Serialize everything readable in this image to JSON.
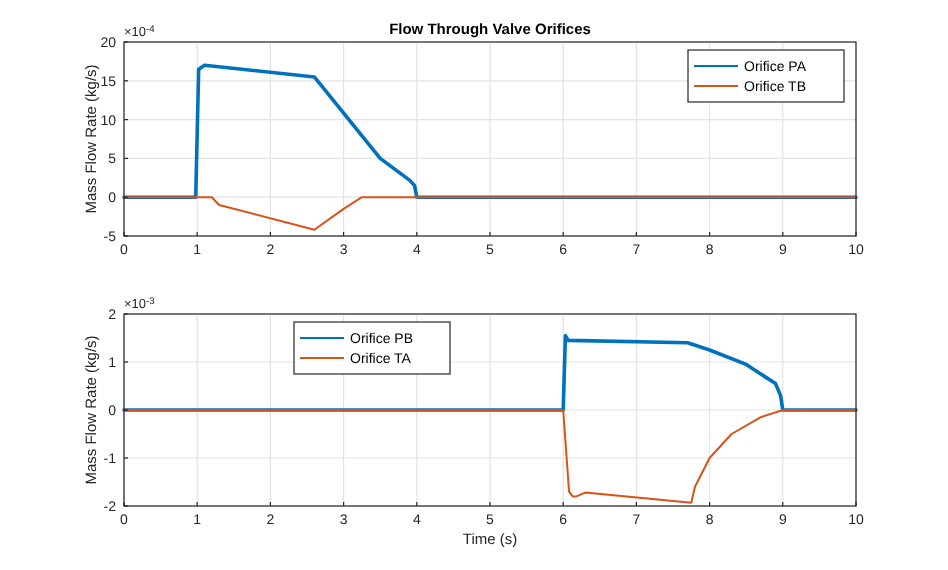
{
  "chart_data": [
    {
      "type": "line",
      "title": "Flow Through Valve Orifices",
      "ylabel": "Mass Flow Rate (kg/s)",
      "annotations": [
        "×10$^{-4}$"
      ],
      "xlim": [
        0,
        10
      ],
      "xticks": [
        0,
        1,
        2,
        3,
        4,
        5,
        6,
        7,
        8,
        9,
        10
      ],
      "ylim": [
        -5,
        20
      ],
      "yticks": [
        -5,
        0,
        5,
        10,
        15,
        20
      ],
      "grid": true,
      "legend": "top right",
      "series": [
        {
          "name": "Orifice PA",
          "color": "#0072bd",
          "x": [
            0,
            0.98,
            1.02,
            1.1,
            2.6,
            3.5,
            3.9,
            3.97,
            4.0,
            10
          ],
          "values": [
            0,
            0,
            16.5,
            17,
            15.5,
            5,
            2.2,
            1.5,
            0,
            0
          ]
        },
        {
          "name": "Orifice TB",
          "color": "#d95319",
          "x": [
            0,
            1.2,
            1.3,
            2.6,
            3.0,
            3.25,
            10
          ],
          "values": [
            0,
            0,
            -1,
            -4.2,
            -1.5,
            0,
            0
          ]
        }
      ]
    },
    {
      "type": "line",
      "xlabel": "Time (s)",
      "ylabel": "Mass Flow Rate (kg/s)",
      "annotations": [
        "×10$^{-3}$"
      ],
      "xlim": [
        0,
        10
      ],
      "xticks": [
        0,
        1,
        2,
        3,
        4,
        5,
        6,
        7,
        8,
        9,
        10
      ],
      "ylim": [
        -2,
        2
      ],
      "yticks": [
        -2,
        -1,
        0,
        1,
        2
      ],
      "grid": true,
      "legend": "top left",
      "series": [
        {
          "name": "Orifice PB",
          "color": "#0072bd",
          "x": [
            0,
            6.0,
            6.03,
            6.07,
            7.7,
            8,
            8.5,
            8.9,
            8.97,
            9,
            10
          ],
          "values": [
            0,
            0,
            1.55,
            1.45,
            1.4,
            1.25,
            0.95,
            0.55,
            0.3,
            0,
            0
          ]
        },
        {
          "name": "Orifice TA",
          "color": "#d95319",
          "x": [
            0,
            6.0,
            6.08,
            6.13,
            6.18,
            6.3,
            7.75,
            7.8,
            8,
            8.3,
            8.7,
            9,
            10
          ],
          "values": [
            0,
            0,
            -1.7,
            -1.8,
            -1.8,
            -1.72,
            -1.93,
            -1.6,
            -1.0,
            -0.5,
            -0.15,
            0,
            0
          ]
        }
      ]
    }
  ]
}
